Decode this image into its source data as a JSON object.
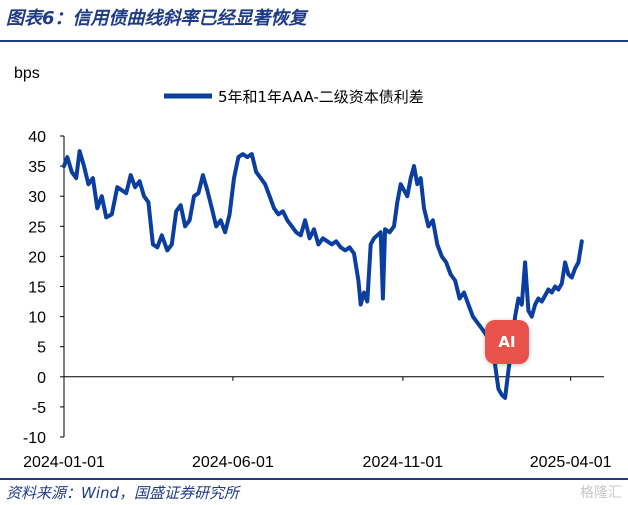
{
  "figure_title": "图表6：信用债曲线斜率已经显著恢复",
  "source": "资料来源：Wind，国盛证券研究所",
  "watermark": "格隆汇",
  "ai_badge": "AI",
  "colors": {
    "series": "#0a3ea0",
    "accent": "#1f3c88"
  },
  "chart_data": {
    "type": "line",
    "title": "",
    "ylabel": "bps",
    "xlabel": "",
    "ylim": [
      -10,
      40
    ],
    "yticks": [
      -10,
      -5,
      0,
      5,
      10,
      15,
      20,
      25,
      30,
      35,
      40
    ],
    "xlim": [
      "2024-01-01",
      "2025-05-01"
    ],
    "xticks": [
      "2024-01-01",
      "2024-06-01",
      "2024-11-01",
      "2025-04-01"
    ],
    "grid": false,
    "legend": "top",
    "series": [
      {
        "name": "5年和1年AAA-二级资本债利差",
        "points": [
          [
            "2024-01-01",
            35
          ],
          [
            "2024-01-04",
            36.5
          ],
          [
            "2024-01-08",
            34
          ],
          [
            "2024-01-12",
            33
          ],
          [
            "2024-01-15",
            37.5
          ],
          [
            "2024-01-19",
            35
          ],
          [
            "2024-01-23",
            32
          ],
          [
            "2024-01-27",
            33
          ],
          [
            "2024-01-31",
            28
          ],
          [
            "2024-02-04",
            30
          ],
          [
            "2024-02-08",
            26.5
          ],
          [
            "2024-02-13",
            27
          ],
          [
            "2024-02-18",
            31.5
          ],
          [
            "2024-02-22",
            31
          ],
          [
            "2024-02-26",
            30.5
          ],
          [
            "2024-03-01",
            33.5
          ],
          [
            "2024-03-05",
            31.5
          ],
          [
            "2024-03-09",
            32.5
          ],
          [
            "2024-03-13",
            30
          ],
          [
            "2024-03-17",
            29
          ],
          [
            "2024-03-21",
            22
          ],
          [
            "2024-03-25",
            21.5
          ],
          [
            "2024-03-29",
            23.5
          ],
          [
            "2024-04-03",
            21
          ],
          [
            "2024-04-07",
            22
          ],
          [
            "2024-04-11",
            27.5
          ],
          [
            "2024-04-15",
            28.5
          ],
          [
            "2024-04-19",
            25
          ],
          [
            "2024-04-23",
            26
          ],
          [
            "2024-04-27",
            30
          ],
          [
            "2024-05-01",
            30.5
          ],
          [
            "2024-05-05",
            33.5
          ],
          [
            "2024-05-09",
            31
          ],
          [
            "2024-05-13",
            28
          ],
          [
            "2024-05-17",
            25
          ],
          [
            "2024-05-21",
            26
          ],
          [
            "2024-05-25",
            24
          ],
          [
            "2024-05-29",
            27
          ],
          [
            "2024-06-02",
            33
          ],
          [
            "2024-06-06",
            36.5
          ],
          [
            "2024-06-10",
            37
          ],
          [
            "2024-06-14",
            36.5
          ],
          [
            "2024-06-18",
            37
          ],
          [
            "2024-06-22",
            34
          ],
          [
            "2024-06-26",
            33
          ],
          [
            "2024-06-30",
            32
          ],
          [
            "2024-07-04",
            30
          ],
          [
            "2024-07-08",
            28
          ],
          [
            "2024-07-12",
            27
          ],
          [
            "2024-07-16",
            27.5
          ],
          [
            "2024-07-20",
            26
          ],
          [
            "2024-07-24",
            25
          ],
          [
            "2024-07-28",
            24
          ],
          [
            "2024-08-01",
            23.5
          ],
          [
            "2024-08-05",
            26
          ],
          [
            "2024-08-09",
            23
          ],
          [
            "2024-08-13",
            24.5
          ],
          [
            "2024-08-17",
            22
          ],
          [
            "2024-08-21",
            23
          ],
          [
            "2024-08-25",
            22.5
          ],
          [
            "2024-08-29",
            22
          ],
          [
            "2024-09-02",
            22.5
          ],
          [
            "2024-09-06",
            21.5
          ],
          [
            "2024-09-10",
            21
          ],
          [
            "2024-09-14",
            21.5
          ],
          [
            "2024-09-18",
            20.5
          ],
          [
            "2024-09-22",
            16
          ],
          [
            "2024-09-24",
            12
          ],
          [
            "2024-09-27",
            14
          ],
          [
            "2024-09-30",
            12.5
          ],
          [
            "2024-10-03",
            22
          ],
          [
            "2024-10-06",
            23
          ],
          [
            "2024-10-09",
            23.5
          ],
          [
            "2024-10-12",
            24
          ],
          [
            "2024-10-14",
            13
          ],
          [
            "2024-10-16",
            24.5
          ],
          [
            "2024-10-20",
            24
          ],
          [
            "2024-10-24",
            25
          ],
          [
            "2024-10-27",
            29
          ],
          [
            "2024-10-30",
            32
          ],
          [
            "2024-11-02",
            31
          ],
          [
            "2024-11-05",
            30
          ],
          [
            "2024-11-08",
            33
          ],
          [
            "2024-11-11",
            35
          ],
          [
            "2024-11-14",
            32
          ],
          [
            "2024-11-17",
            33
          ],
          [
            "2024-11-20",
            28
          ],
          [
            "2024-11-24",
            25
          ],
          [
            "2024-11-28",
            26
          ],
          [
            "2024-12-02",
            22
          ],
          [
            "2024-12-06",
            20
          ],
          [
            "2024-12-10",
            19
          ],
          [
            "2024-12-14",
            17
          ],
          [
            "2024-12-18",
            16
          ],
          [
            "2024-12-22",
            13
          ],
          [
            "2024-12-26",
            14
          ],
          [
            "2024-12-30",
            12
          ],
          [
            "2025-01-03",
            10
          ],
          [
            "2025-01-07",
            9
          ],
          [
            "2025-01-11",
            8
          ],
          [
            "2025-01-15",
            7
          ],
          [
            "2025-01-19",
            5
          ],
          [
            "2025-01-23",
            2
          ],
          [
            "2025-01-26",
            -2
          ],
          [
            "2025-01-29",
            -3
          ],
          [
            "2025-02-01",
            -3.5
          ],
          [
            "2025-02-04",
            1
          ],
          [
            "2025-02-07",
            5
          ],
          [
            "2025-02-10",
            10
          ],
          [
            "2025-02-13",
            13
          ],
          [
            "2025-02-16",
            12
          ],
          [
            "2025-02-19",
            19
          ],
          [
            "2025-02-22",
            11
          ],
          [
            "2025-02-25",
            10
          ],
          [
            "2025-02-28",
            12
          ],
          [
            "2025-03-03",
            13
          ],
          [
            "2025-03-06",
            12.5
          ],
          [
            "2025-03-09",
            13.5
          ],
          [
            "2025-03-12",
            14.5
          ],
          [
            "2025-03-15",
            14
          ],
          [
            "2025-03-18",
            15
          ],
          [
            "2025-03-21",
            14.5
          ],
          [
            "2025-03-24",
            15.5
          ],
          [
            "2025-03-27",
            19
          ],
          [
            "2025-03-30",
            17
          ],
          [
            "2025-04-02",
            16.5
          ],
          [
            "2025-04-05",
            18
          ],
          [
            "2025-04-08",
            19
          ],
          [
            "2025-04-11",
            22.5
          ]
        ]
      }
    ]
  }
}
